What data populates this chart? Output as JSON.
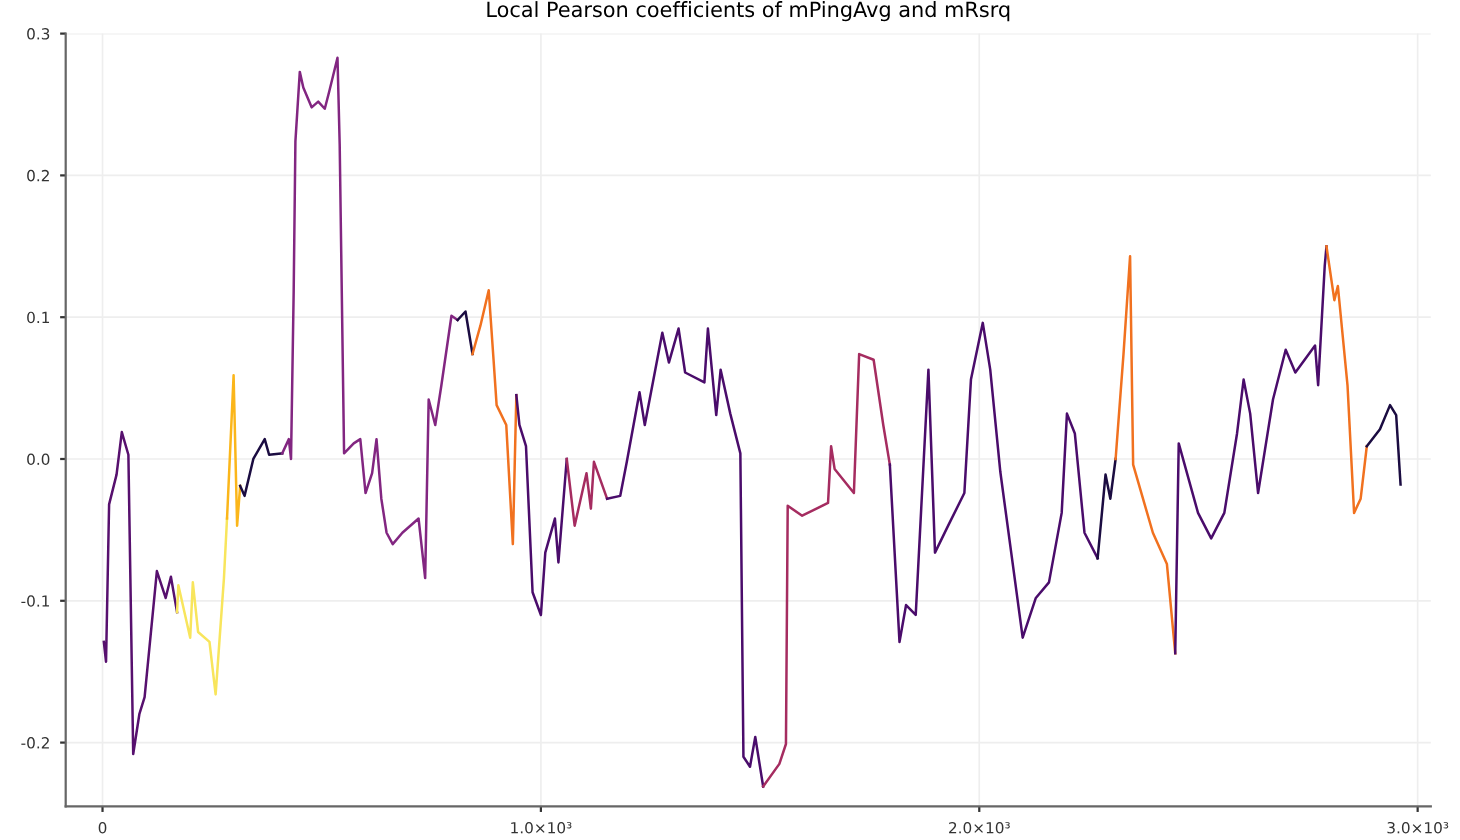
{
  "chart_data": {
    "type": "line",
    "title": "Local Pearson coefficients of mPingAvg and mRsrq",
    "xlim": [
      -84,
      3030
    ],
    "xticks": [
      0,
      {
        "value": 1000,
        "label": "1.0×10³"
      },
      {
        "value": 2000,
        "label": "2.0×10³"
      },
      {
        "value": 3000,
        "label": "3.0×10³"
      }
    ],
    "ylim": [
      -0.245,
      0.3
    ],
    "yticks": [
      -0.2,
      -0.1,
      {
        "value": 0,
        "label": "0.0"
      },
      0.1,
      0.2,
      0.3
    ],
    "grid": true,
    "marker": "none",
    "line_style": "solid",
    "series": [
      {
        "color": "#57106e",
        "x": [
          3,
          8,
          15,
          32,
          44,
          59,
          70,
          84,
          96,
          124,
          144,
          156,
          170
        ],
        "values": [
          -0.129,
          -0.143,
          -0.032,
          -0.011,
          0.019,
          0.003,
          -0.208,
          -0.18,
          -0.168,
          -0.079,
          -0.098,
          -0.083,
          -0.108
        ]
      },
      {
        "color": "#f8e55c",
        "x": [
          170,
          173,
          200,
          206,
          218,
          244,
          258,
          277,
          284
        ],
        "values": [
          -0.108,
          -0.089,
          -0.126,
          -0.087,
          -0.122,
          -0.129,
          -0.166,
          -0.084,
          -0.042
        ]
      },
      {
        "color": "#fbb61a",
        "x": [
          284,
          299,
          307,
          314
        ],
        "values": [
          -0.042,
          0.059,
          -0.047,
          -0.019
        ]
      },
      {
        "color": "#1b0c41",
        "x": [
          314,
          324,
          344,
          370,
          380,
          410
        ],
        "values": [
          -0.019,
          -0.026,
          0.0,
          0.014,
          0.003,
          0.004
        ]
      },
      {
        "color": "#822681",
        "x": [
          410,
          425,
          430,
          436,
          440,
          450,
          458,
          477,
          492,
          507,
          517,
          536,
          541,
          551,
          573,
          588,
          600,
          615,
          625,
          636,
          648,
          662,
          684,
          721,
          736,
          744,
          759,
          773,
          796,
          810
        ],
        "values": [
          0.004,
          0.014,
          0.0,
          0.117,
          0.224,
          0.273,
          0.262,
          0.248,
          0.252,
          0.247,
          0.259,
          0.283,
          0.222,
          0.004,
          0.011,
          0.014,
          -0.024,
          -0.01,
          0.014,
          -0.028,
          -0.052,
          -0.06,
          -0.052,
          -0.042,
          -0.084,
          0.042,
          0.024,
          0.052,
          0.101,
          0.098
        ]
      },
      {
        "color": "#1b0c41",
        "x": [
          810,
          828,
          844
        ],
        "values": [
          0.098,
          0.104,
          0.074
        ]
      },
      {
        "color": "#f1711f",
        "x": [
          844,
          862,
          881,
          892,
          899,
          921,
          936,
          944
        ],
        "values": [
          0.074,
          0.094,
          0.119,
          0.07,
          0.038,
          0.024,
          -0.06,
          0.045
        ]
      },
      {
        "color": "#4a0c6b",
        "x": [
          944,
          951,
          966,
          981,
          1000,
          1010,
          1032,
          1040,
          1059
        ],
        "values": [
          0.045,
          0.024,
          0.009,
          -0.094,
          -0.11,
          -0.066,
          -0.042,
          -0.073,
          0.0
        ]
      },
      {
        "color": "#a52c60",
        "x": [
          1059,
          1077,
          1104,
          1114,
          1121,
          1151
        ],
        "values": [
          0.0,
          -0.047,
          -0.01,
          -0.035,
          -0.002,
          -0.028
        ]
      },
      {
        "color": "#4a0c6b",
        "x": [
          1151,
          1181,
          1196,
          1225,
          1237,
          1277,
          1292,
          1314,
          1329,
          1373,
          1381,
          1400,
          1410,
          1432,
          1455,
          1462,
          1477,
          1489,
          1507
        ],
        "values": [
          -0.028,
          -0.026,
          -0.002,
          0.047,
          0.024,
          0.089,
          0.068,
          0.092,
          0.061,
          0.054,
          0.092,
          0.031,
          0.063,
          0.032,
          0.004,
          -0.21,
          -0.217,
          -0.196,
          -0.231
        ]
      },
      {
        "color": "#a52c60",
        "x": [
          1507,
          1544,
          1559,
          1563,
          1596,
          1655,
          1662,
          1670,
          1714,
          1726,
          1759,
          1781,
          1796
        ],
        "values": [
          -0.231,
          -0.215,
          -0.201,
          -0.033,
          -0.04,
          -0.031,
          0.009,
          -0.007,
          -0.024,
          0.074,
          0.07,
          0.024,
          -0.004
        ]
      },
      {
        "color": "#4a0c6b",
        "x": [
          1796,
          1818,
          1833,
          1855,
          1884,
          1899,
          1929,
          1966,
          1981,
          2008,
          2025,
          2048,
          2099,
          2129,
          2159,
          2188,
          2200,
          2218,
          2240,
          2270
        ],
        "values": [
          -0.004,
          -0.129,
          -0.103,
          -0.11,
          0.063,
          -0.066,
          -0.047,
          -0.024,
          0.056,
          0.096,
          0.063,
          -0.009,
          -0.126,
          -0.098,
          -0.087,
          -0.038,
          0.032,
          0.018,
          -0.052,
          -0.07
        ]
      },
      {
        "color": "#1b0c41",
        "x": [
          2270,
          2288,
          2299,
          2311
        ],
        "values": [
          -0.07,
          -0.011,
          -0.028,
          0.0
        ]
      },
      {
        "color": "#f1711f",
        "x": [
          2311,
          2329,
          2344,
          2351,
          2396,
          2428,
          2447
        ],
        "values": [
          0.0,
          0.074,
          0.143,
          -0.004,
          -0.052,
          -0.074,
          -0.137
        ]
      },
      {
        "color": "#4a0c6b",
        "x": [
          2447,
          2455,
          2499,
          2529,
          2559,
          2588,
          2603,
          2618,
          2636,
          2670,
          2699,
          2721,
          2766,
          2773,
          2788,
          2792
        ],
        "values": [
          -0.137,
          0.011,
          -0.038,
          -0.056,
          -0.038,
          0.018,
          0.056,
          0.032,
          -0.024,
          0.042,
          0.077,
          0.061,
          0.08,
          0.052,
          0.136,
          0.15
        ]
      },
      {
        "color": "#f1711f",
        "x": [
          2792,
          2810,
          2818,
          2840,
          2855,
          2870,
          2884
        ],
        "values": [
          0.15,
          0.112,
          0.122,
          0.052,
          -0.038,
          -0.028,
          0.009
        ]
      },
      {
        "color": "#1b0c41",
        "x": [
          2884,
          2914,
          2937,
          2951,
          2961
        ],
        "values": [
          0.009,
          0.021,
          0.038,
          0.031,
          -0.018
        ]
      }
    ]
  }
}
